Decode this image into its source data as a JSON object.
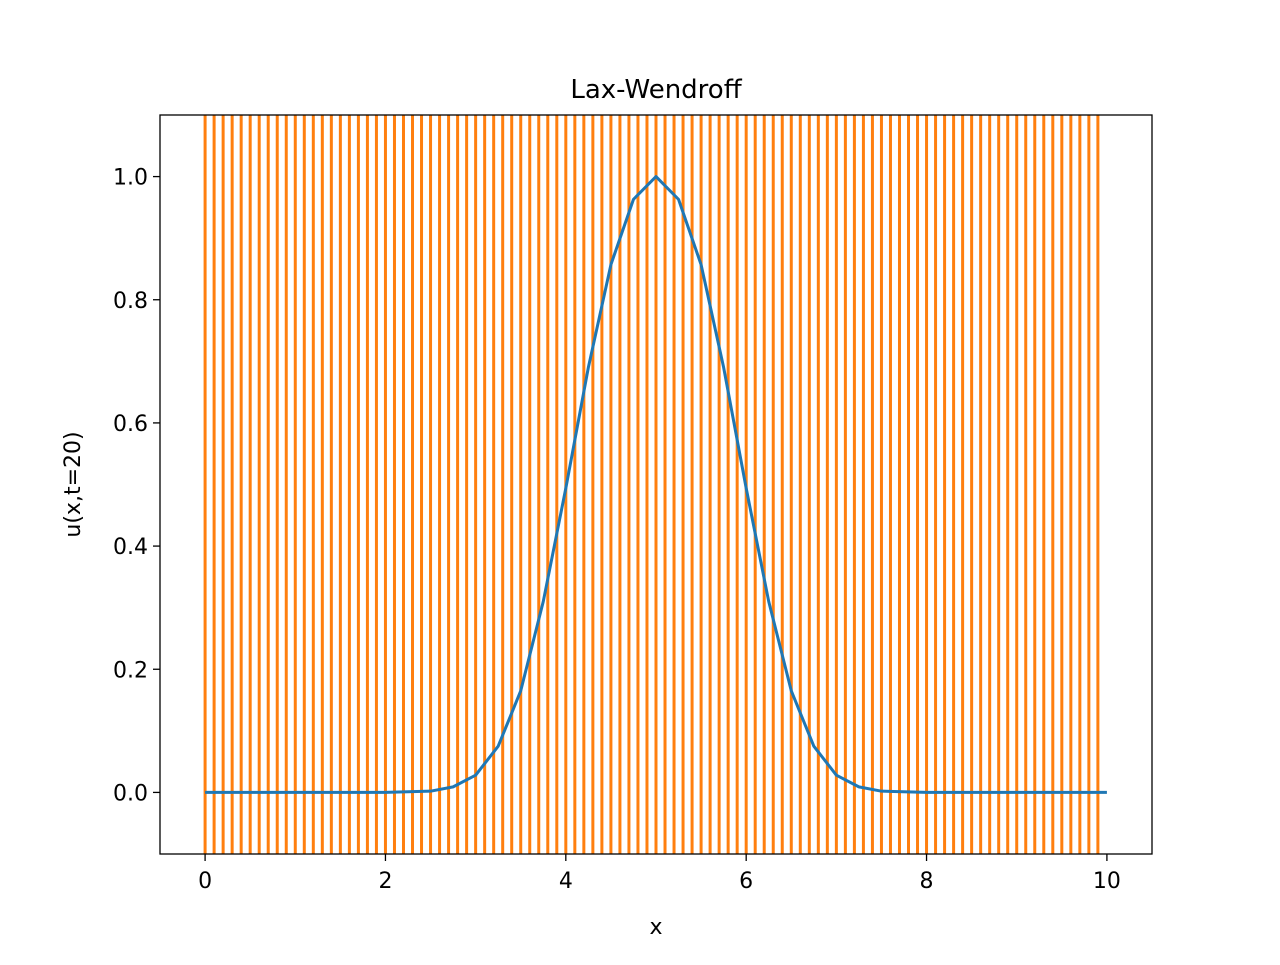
{
  "chart_data": {
    "type": "line",
    "title": "Lax-Wendroff",
    "xlabel": "x",
    "ylabel": "u(x,t=20)",
    "xlim": [
      -0.5,
      10.5
    ],
    "ylim": [
      -0.1,
      1.1
    ],
    "xticks": [
      0,
      2,
      4,
      6,
      8,
      10
    ],
    "xtick_labels": [
      "0",
      "2",
      "4",
      "6",
      "8",
      "10"
    ],
    "yticks": [
      0.0,
      0.2,
      0.4,
      0.6,
      0.8,
      1.0
    ],
    "ytick_labels": [
      "0.0",
      "0.2",
      "0.4",
      "0.6",
      "0.8",
      "1.0"
    ],
    "grid": false,
    "series": [
      {
        "color": "#1f77b4",
        "style": "line",
        "x": [
          0,
          0.5,
          1,
          1.5,
          2,
          2.5,
          2.75,
          3,
          3.25,
          3.5,
          3.75,
          4,
          4.25,
          4.5,
          4.75,
          5,
          5.25,
          5.5,
          5.75,
          6,
          6.25,
          6.5,
          6.75,
          7,
          7.25,
          7.5,
          8,
          8.5,
          9,
          9.5,
          10
        ],
        "y": [
          0.0,
          0.0,
          0.0,
          0.0,
          0.0,
          0.002,
          0.009,
          0.028,
          0.075,
          0.165,
          0.31,
          0.494,
          0.69,
          0.857,
          0.963,
          1.0,
          0.963,
          0.857,
          0.69,
          0.494,
          0.31,
          0.165,
          0.075,
          0.028,
          0.009,
          0.002,
          0.0,
          0.0,
          0.0,
          0.0,
          0.0
        ]
      },
      {
        "color": "#ff7f0e",
        "style": "vertical-lines",
        "x_start": 0.0,
        "x_end": 9.95,
        "x_step": 0.1,
        "y_range": [
          -0.1,
          1.1
        ]
      }
    ]
  }
}
